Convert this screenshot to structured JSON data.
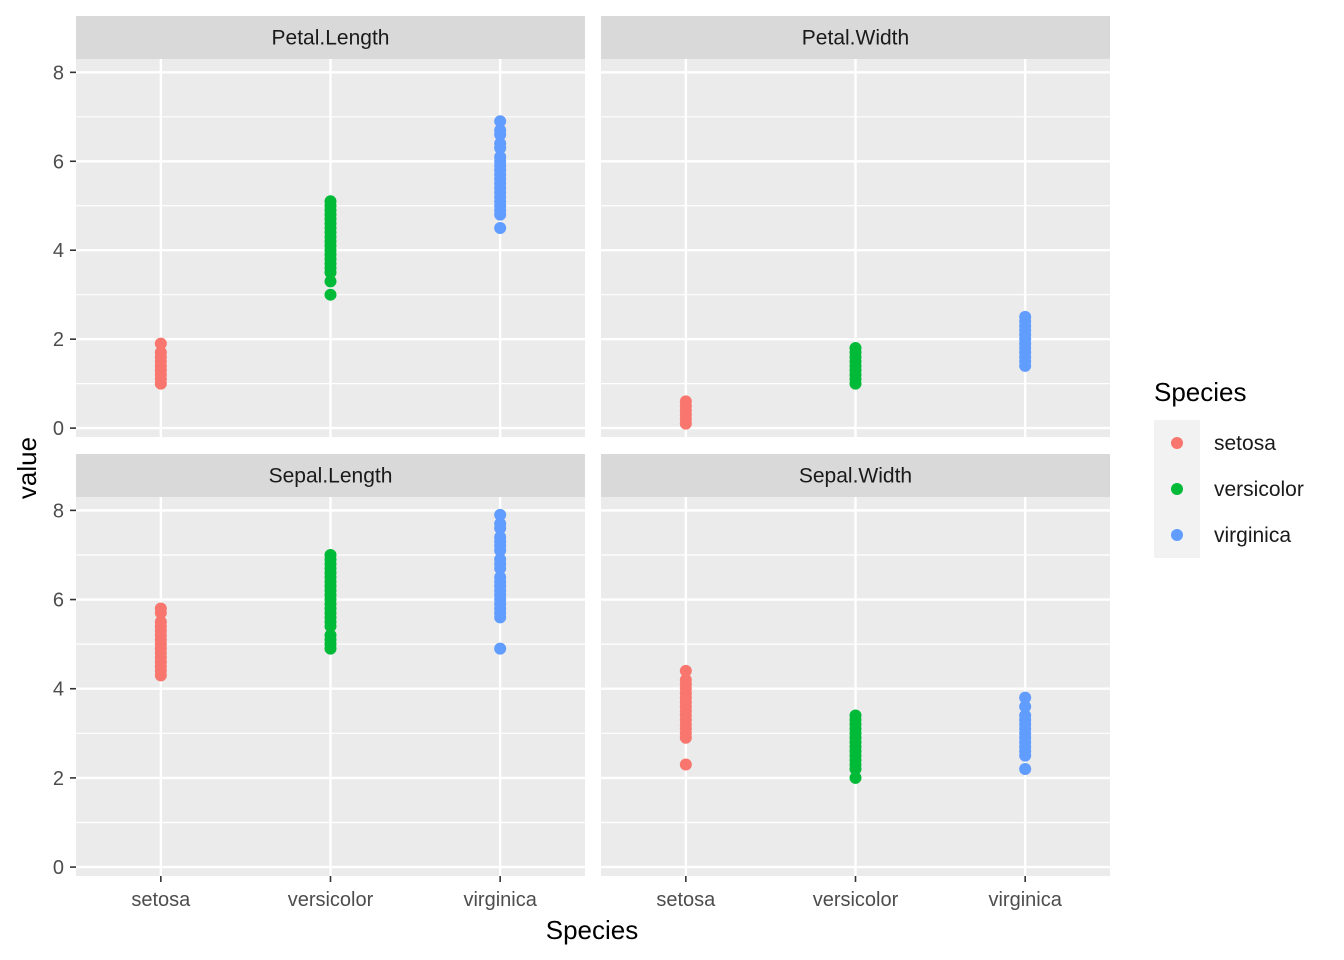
{
  "chart_data": {
    "type": "scatter",
    "facet_layout": "2x2",
    "xlabel": "Species",
    "ylabel": "value",
    "categories": [
      "setosa",
      "versicolor",
      "virginica"
    ],
    "ylim": [
      -0.2,
      8.3
    ],
    "yticks": [
      0,
      2,
      4,
      6,
      8
    ],
    "grid": true,
    "legend": {
      "title": "Species",
      "position": "right",
      "entries": [
        {
          "name": "setosa",
          "color": "#F8766D"
        },
        {
          "name": "versicolor",
          "color": "#00BA38"
        },
        {
          "name": "virginica",
          "color": "#619CFF"
        }
      ]
    },
    "panels": [
      {
        "title": "Petal.Length",
        "series": [
          {
            "name": "setosa",
            "values": [
              1.0,
              1.1,
              1.2,
              1.3,
              1.4,
              1.5,
              1.6,
              1.7,
              1.9
            ]
          },
          {
            "name": "versicolor",
            "values": [
              3.0,
              3.3,
              3.5,
              3.6,
              3.7,
              3.8,
              3.9,
              4.0,
              4.1,
              4.2,
              4.3,
              4.4,
              4.5,
              4.6,
              4.7,
              4.8,
              4.9,
              5.0,
              5.1
            ]
          },
          {
            "name": "virginica",
            "values": [
              4.5,
              4.8,
              4.9,
              5.0,
              5.1,
              5.2,
              5.3,
              5.4,
              5.5,
              5.6,
              5.7,
              5.8,
              5.9,
              6.0,
              6.1,
              6.3,
              6.4,
              6.6,
              6.7,
              6.9
            ]
          }
        ]
      },
      {
        "title": "Petal.Width",
        "series": [
          {
            "name": "setosa",
            "values": [
              0.1,
              0.2,
              0.3,
              0.4,
              0.5,
              0.6
            ]
          },
          {
            "name": "versicolor",
            "values": [
              1.0,
              1.1,
              1.2,
              1.3,
              1.4,
              1.5,
              1.6,
              1.7,
              1.8
            ]
          },
          {
            "name": "virginica",
            "values": [
              1.4,
              1.5,
              1.6,
              1.7,
              1.8,
              1.9,
              2.0,
              2.1,
              2.2,
              2.3,
              2.4,
              2.5
            ]
          }
        ]
      },
      {
        "title": "Sepal.Length",
        "series": [
          {
            "name": "setosa",
            "values": [
              4.3,
              4.4,
              4.5,
              4.6,
              4.7,
              4.8,
              4.9,
              5.0,
              5.1,
              5.2,
              5.3,
              5.4,
              5.5,
              5.7,
              5.8
            ]
          },
          {
            "name": "versicolor",
            "values": [
              4.9,
              5.0,
              5.1,
              5.2,
              5.4,
              5.5,
              5.6,
              5.7,
              5.8,
              5.9,
              6.0,
              6.1,
              6.2,
              6.3,
              6.4,
              6.5,
              6.6,
              6.7,
              6.8,
              6.9,
              7.0
            ]
          },
          {
            "name": "virginica",
            "values": [
              4.9,
              5.6,
              5.7,
              5.8,
              5.9,
              6.0,
              6.1,
              6.2,
              6.3,
              6.4,
              6.5,
              6.7,
              6.8,
              6.9,
              7.1,
              7.2,
              7.3,
              7.4,
              7.6,
              7.7,
              7.9
            ]
          }
        ]
      },
      {
        "title": "Sepal.Width",
        "series": [
          {
            "name": "setosa",
            "values": [
              2.3,
              2.9,
              3.0,
              3.1,
              3.2,
              3.3,
              3.4,
              3.5,
              3.6,
              3.7,
              3.8,
              3.9,
              4.0,
              4.1,
              4.2,
              4.4
            ]
          },
          {
            "name": "versicolor",
            "values": [
              2.0,
              2.2,
              2.3,
              2.4,
              2.5,
              2.6,
              2.7,
              2.8,
              2.9,
              3.0,
              3.1,
              3.2,
              3.3,
              3.4
            ]
          },
          {
            "name": "virginica",
            "values": [
              2.2,
              2.5,
              2.6,
              2.7,
              2.8,
              2.9,
              3.0,
              3.1,
              3.2,
              3.3,
              3.4,
              3.6,
              3.8
            ]
          }
        ]
      }
    ]
  }
}
